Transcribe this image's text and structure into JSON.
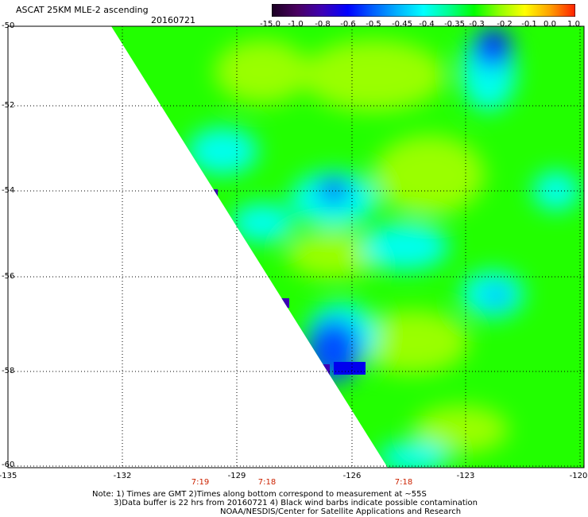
{
  "header": {
    "title": "ASCAT 25KM MLE-2 ascending",
    "date": "20160721"
  },
  "legend": {
    "labels": [
      "-15.0",
      "-1.0",
      "-0.8",
      "-0.6",
      "-0.5",
      "-0.45",
      "-0.4",
      "-0.35",
      "-0.3",
      "-0.2",
      "-0.1",
      "0.0",
      "1.0"
    ],
    "colors": [
      "#1a0022",
      "#4a0060",
      "#3d00b5",
      "#0000ff",
      "#0060ff",
      "#00b4ff",
      "#00ffff",
      "#00ff90",
      "#00ff00",
      "#90ff00",
      "#ffff00",
      "#ffa000",
      "#ff2000"
    ]
  },
  "axes": {
    "lat_labels": [
      "-50",
      "-52",
      "-54",
      "-56",
      "-58",
      "-60"
    ],
    "lon_labels": [
      "-135",
      "-132",
      "-129",
      "-126",
      "-123",
      "-120"
    ],
    "time_labels": [
      "7:19",
      "7:18",
      "7:18"
    ]
  },
  "notes": {
    "line1": "Note: 1) Times are GMT 2)Times along bottom correspond to measurement at ~55S",
    "line2": "3)Data buffer is 22 hrs from 20160721 4) Black wind barbs indicate possible contamination",
    "line3": "NOAA/NESDIS/Center for Satellite Applications and Research"
  },
  "colors": {
    "background": "#00ff00",
    "grid": "#000000",
    "time_text": "#cc2200"
  }
}
